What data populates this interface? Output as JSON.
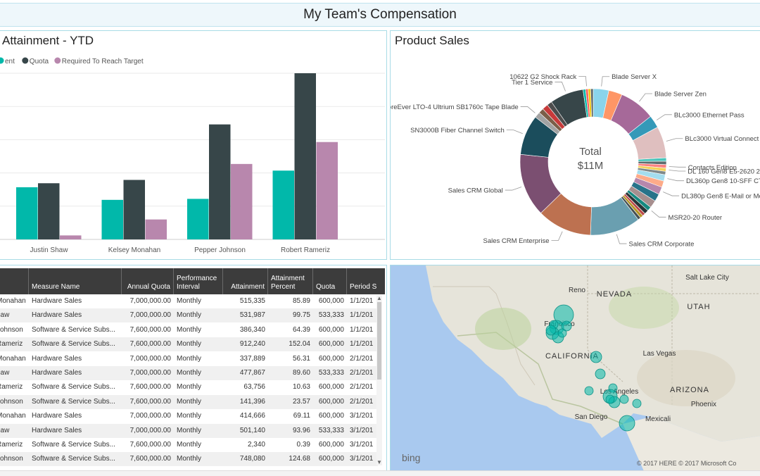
{
  "report_title": "My Team's Compensation",
  "attainment_chart": {
    "title": "Attainment - YTD",
    "legend": [
      {
        "label": "ent",
        "color": "#01b8aa"
      },
      {
        "label": "Quota",
        "color": "#374649"
      },
      {
        "label": "Required To Reach Target",
        "color": "#b887ad"
      }
    ]
  },
  "chart_data": [
    {
      "type": "bar",
      "title": "Attainment - YTD",
      "categories": [
        "Justin Shaw",
        "Kelsey Monahan",
        "Pepper Johnson",
        "Robert Rameriz"
      ],
      "series": [
        {
          "name": "ent",
          "values": [
            1.57,
            1.19,
            1.22,
            2.07
          ],
          "color": "#01b8aa"
        },
        {
          "name": "Quota",
          "values": [
            1.69,
            1.79,
            3.46,
            5.0
          ],
          "color": "#374649"
        },
        {
          "name": "Required To Reach Target",
          "values": [
            0.12,
            0.6,
            2.27,
            2.93
          ],
          "color": "#b887ad"
        }
      ],
      "ylim": [
        0,
        5
      ],
      "grid": true,
      "legend_position": "top-left"
    },
    {
      "type": "pie",
      "title": "Product Sales",
      "center_label": "Total",
      "center_value": "$11M",
      "slices": [
        {
          "label": "Blade Server X",
          "value": 3.7,
          "color": "#8ad4eb"
        },
        {
          "label": "",
          "value": 3.2,
          "color": "#fe9666"
        },
        {
          "label": "Blade Server Zen",
          "value": 8.5,
          "color": "#a66999"
        },
        {
          "label": "BLc3000 Ethernet Pass",
          "value": 3.0,
          "color": "#3599b8"
        },
        {
          "label": "BLc3000 Virtual Connect",
          "value": 7.5,
          "color": "#dfbfbf"
        },
        {
          "label": "",
          "value": 0.8,
          "color": "#4ac5bb"
        },
        {
          "label": "",
          "value": 0.8,
          "color": "#5f6b6d"
        },
        {
          "label": "Contacts Edition",
          "value": 0.8,
          "color": "#fb8281"
        },
        {
          "label": "DL 160 Gen8 E5-2620 2.0GHz",
          "value": 0.8,
          "color": "#f4d25a"
        },
        {
          "label": "",
          "value": 0.8,
          "color": "#7f898a"
        },
        {
          "label": "DL360p Gen8 10-SFF CTO Server",
          "value": 1.5,
          "color": "#a4ddee"
        },
        {
          "label": "",
          "value": 1.5,
          "color": "#fdab89"
        },
        {
          "label": "DL380p Gen8 E-Mail or Messaging Server",
          "value": 1.8,
          "color": "#b687ac"
        },
        {
          "label": "",
          "value": 1.8,
          "color": "#28738a"
        },
        {
          "label": "",
          "value": 1.8,
          "color": "#a78f8f"
        },
        {
          "label": "MSR20-20 Router",
          "value": 1.0,
          "color": "#168980"
        },
        {
          "label": "",
          "value": 1.0,
          "color": "#293537"
        },
        {
          "label": "",
          "value": 0.7,
          "color": "#bb4a4a"
        },
        {
          "label": "",
          "value": 0.7,
          "color": "#b59525"
        },
        {
          "label": "",
          "value": 0.7,
          "color": "#475052"
        },
        {
          "label": "Sales CRM Corporate",
          "value": 12.0,
          "color": "#6a9fb0"
        },
        {
          "label": "Sales CRM Enterprise",
          "value": 13.0,
          "color": "#bd7150"
        },
        {
          "label": "Sales CRM Global",
          "value": 15.0,
          "color": "#7b4f71"
        },
        {
          "label": "SN3000B Fiber Channel Switch",
          "value": 9.5,
          "color": "#1b4d5c"
        },
        {
          "label": "StoreEver LTO-4 Ultrium SB1760c Tape Blade",
          "value": 1.4,
          "color": "#a3a3a3"
        },
        {
          "label": "",
          "value": 1.2,
          "color": "#7b5e48"
        },
        {
          "label": "",
          "value": 1.4,
          "color": "#c73a3a"
        },
        {
          "label": "",
          "value": 1.2,
          "color": "#4d4d4d"
        },
        {
          "label": "Tier 1 Service",
          "value": 8.0,
          "color": "#374649"
        },
        {
          "label": "",
          "value": 0.6,
          "color": "#01b8aa"
        },
        {
          "label": "10622 G2 Shock Rack",
          "value": 0.6,
          "color": "#fd625e"
        },
        {
          "label": "",
          "value": 0.6,
          "color": "#f2c80f"
        },
        {
          "label": "",
          "value": 0.6,
          "color": "#5f6b6d"
        }
      ]
    }
  ],
  "product_sales": {
    "title": "Product Sales",
    "center_label": "Total",
    "center_value": "$11M"
  },
  "table": {
    "columns": [
      "",
      "Measure Name",
      "Annual Quota",
      "Performance Interval",
      "Attainment",
      "Attainment Percent",
      "Quota",
      "Period S"
    ],
    "rows": [
      [
        "Monahan",
        "Hardware Sales",
        "7,000,000.00",
        "Monthly",
        "515,335",
        "85.89",
        "600,000",
        "1/1/201"
      ],
      [
        "haw",
        "Hardware Sales",
        "7,000,000.00",
        "Monthly",
        "531,987",
        "99.75",
        "533,333",
        "1/1/201"
      ],
      [
        "Johnson",
        "Software & Service Subs...",
        "7,600,000.00",
        "Monthly",
        "386,340",
        "64.39",
        "600,000",
        "1/1/201"
      ],
      [
        "Rameriz",
        "Software & Service Subs...",
        "7,600,000.00",
        "Monthly",
        "912,240",
        "152.04",
        "600,000",
        "1/1/201"
      ],
      [
        "Monahan",
        "Hardware Sales",
        "7,000,000.00",
        "Monthly",
        "337,889",
        "56.31",
        "600,000",
        "2/1/201"
      ],
      [
        "haw",
        "Hardware Sales",
        "7,000,000.00",
        "Monthly",
        "477,867",
        "89.60",
        "533,333",
        "2/1/201"
      ],
      [
        "Rameriz",
        "Software & Service Subs...",
        "7,600,000.00",
        "Monthly",
        "63,756",
        "10.63",
        "600,000",
        "2/1/201"
      ],
      [
        "Johnson",
        "Software & Service Subs...",
        "7,600,000.00",
        "Monthly",
        "141,396",
        "23.57",
        "600,000",
        "2/1/201"
      ],
      [
        "Monahan",
        "Hardware Sales",
        "7,000,000.00",
        "Monthly",
        "414,666",
        "69.11",
        "600,000",
        "3/1/201"
      ],
      [
        "haw",
        "Hardware Sales",
        "7,000,000.00",
        "Monthly",
        "501,140",
        "93.96",
        "533,333",
        "3/1/201"
      ],
      [
        "Rameriz",
        "Software & Service Subs...",
        "7,600,000.00",
        "Monthly",
        "2,340",
        "0.39",
        "600,000",
        "3/1/201"
      ],
      [
        "Johnson",
        "Software & Service Subs...",
        "7,600,000.00",
        "Monthly",
        "748,080",
        "124.68",
        "600,000",
        "3/1/201"
      ]
    ]
  },
  "map": {
    "labels": [
      {
        "text": "Reno"
      },
      {
        "text": "NEVADA"
      },
      {
        "text": "Salt Lake City"
      },
      {
        "text": "UTAH"
      },
      {
        "text": "Francisco"
      },
      {
        "text": "CALIFORNIA"
      },
      {
        "text": "Las Vegas"
      },
      {
        "text": "Los Angeles"
      },
      {
        "text": "ARIZONA"
      },
      {
        "text": "Phoenix"
      },
      {
        "text": "San Diego"
      },
      {
        "text": "Mexicali"
      }
    ],
    "brand": "bing",
    "copyright": "© 2017 HERE   © 2017 Microsoft Co",
    "bubble_color": "#01b8aa"
  }
}
